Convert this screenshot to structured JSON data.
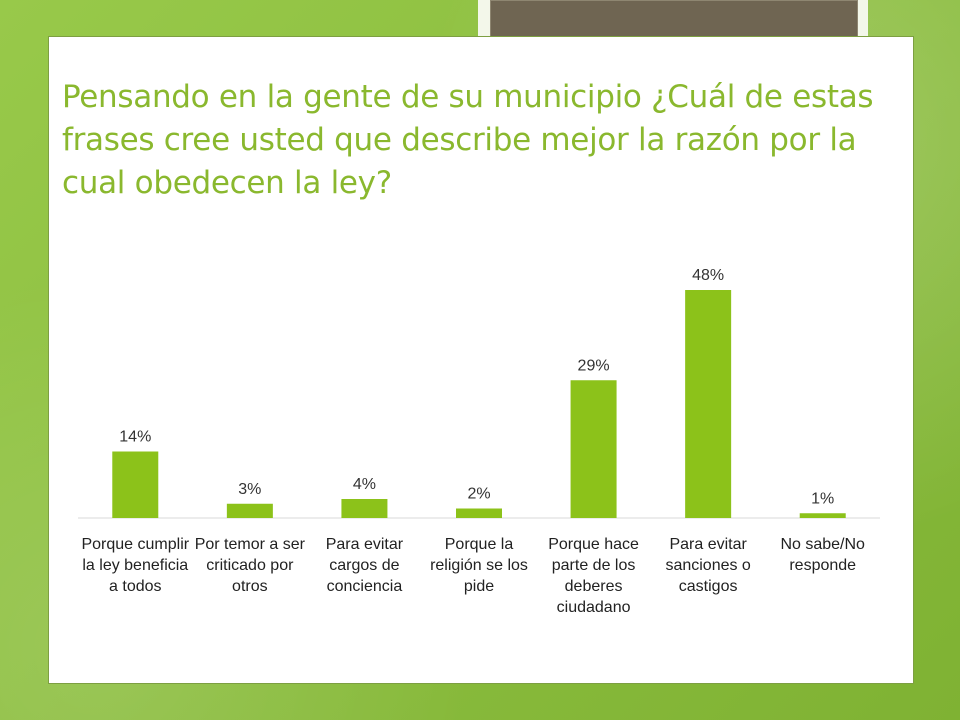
{
  "slide": {
    "title": "Pensando en la gente de su municipio ¿Cuál de estas frases cree usted que describe mejor la razón por la cual obedecen la ley?"
  },
  "colors": {
    "bar": "#8cc21a",
    "title": "#8ab82e",
    "background": "#8fc23f",
    "decorative_box": "#6f6552"
  },
  "chart_data": {
    "type": "bar",
    "title": "",
    "xlabel": "",
    "ylabel": "",
    "categories": [
      "Porque cumplir la ley beneficia a todos",
      "Por temor a ser criticado por otros",
      "Para evitar cargos de conciencia",
      "Porque la religión se los pide",
      "Porque hace parte de los deberes ciudadano",
      "Para evitar sanciones o castigos",
      "No sabe/No responde"
    ],
    "values": [
      14,
      3,
      4,
      2,
      29,
      48,
      1
    ],
    "data_labels": [
      "14%",
      "3%",
      "4%",
      "2%",
      "29%",
      "48%",
      "1%"
    ],
    "unit": "%",
    "ylim": [
      0,
      50
    ],
    "grid": false,
    "legend": "none"
  }
}
